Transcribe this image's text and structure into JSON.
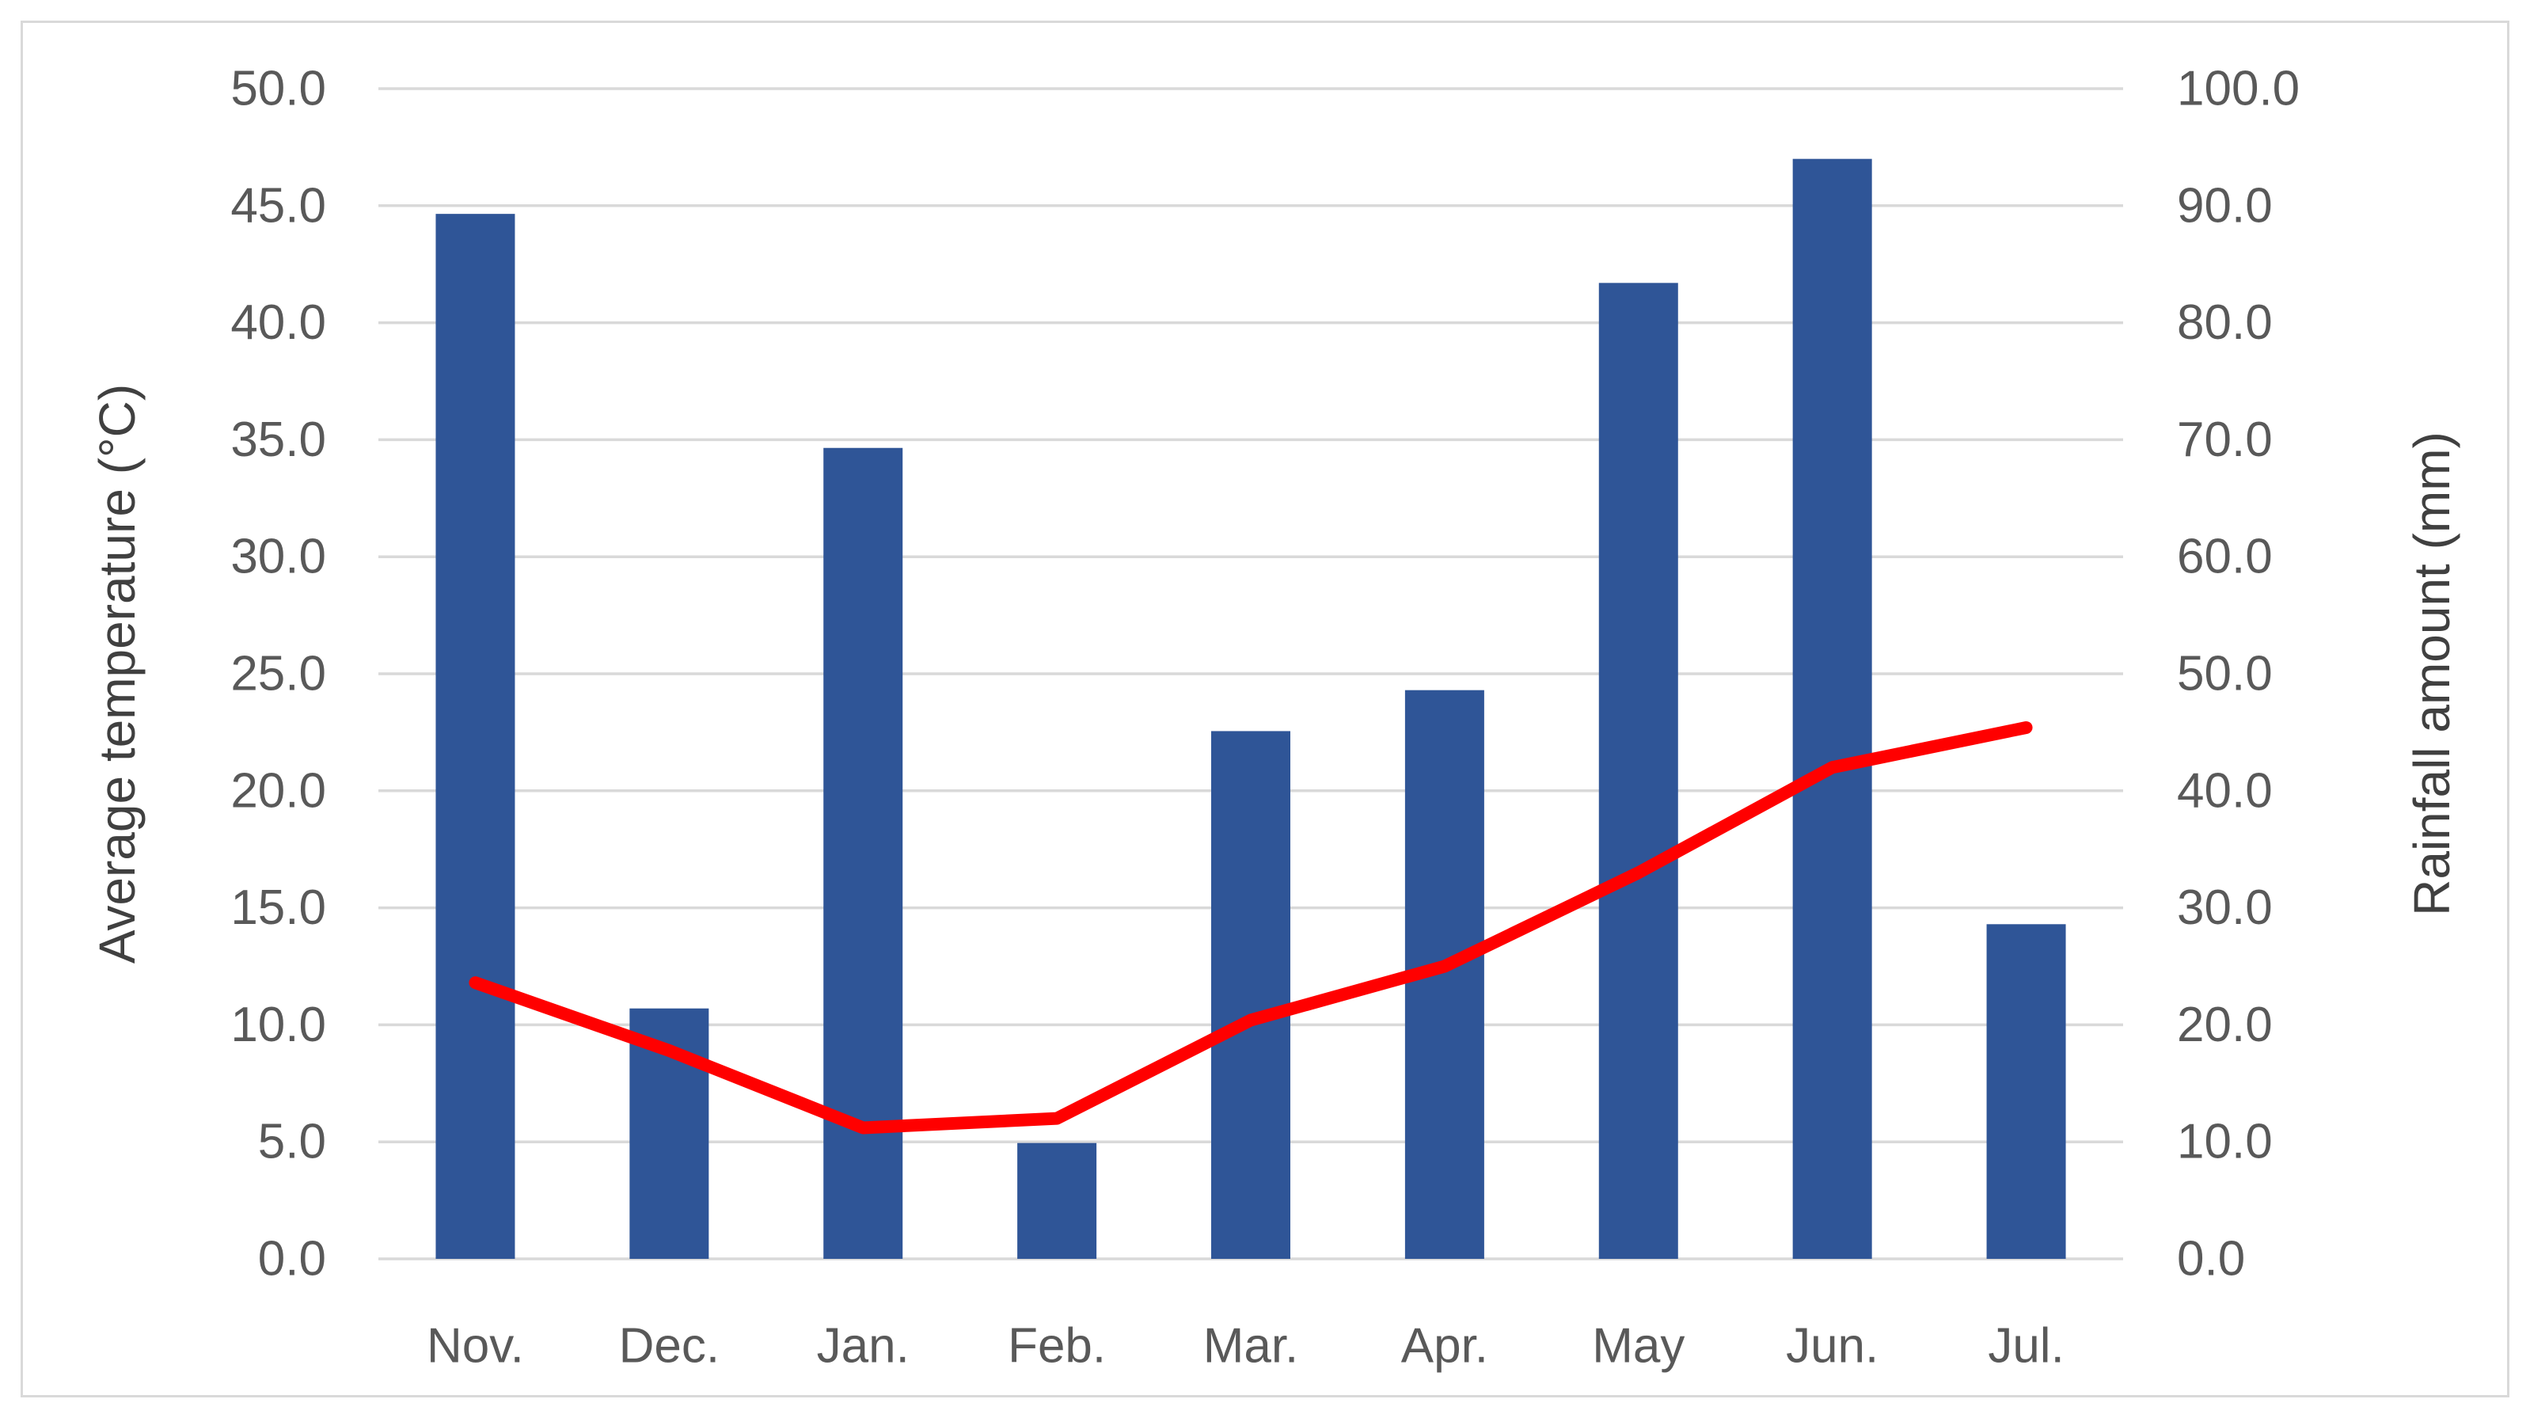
{
  "figure": {
    "background": "#ffffff",
    "border_color": "#d9d9d9"
  },
  "chart_data": {
    "type": "combo-bar-line",
    "categories": [
      "Nov.",
      "Dec.",
      "Jan.",
      "Feb.",
      "Mar.",
      "Apr.",
      "May",
      "Jun.",
      "Jul."
    ],
    "series": [
      {
        "name": "Rainfall amount (mm)",
        "type": "bar",
        "axis": "right",
        "color": "#2f5597",
        "values": [
          89.3,
          21.4,
          69.3,
          9.9,
          45.1,
          48.6,
          83.4,
          94.0,
          28.6
        ]
      },
      {
        "name": "Average temperature (°C)",
        "type": "line",
        "axis": "left",
        "color": "#ff0000",
        "values": [
          11.8,
          8.9,
          5.6,
          6.0,
          10.2,
          12.5,
          16.5,
          21.0,
          22.7
        ]
      }
    ],
    "left_axis": {
      "title": "Average temperature (°C)",
      "min": 0,
      "max": 50,
      "step": 5,
      "tick_labels": [
        "0.0",
        "5.0",
        "10.0",
        "15.0",
        "20.0",
        "25.0",
        "30.0",
        "35.0",
        "40.0",
        "45.0",
        "50.0"
      ]
    },
    "right_axis": {
      "title": "Rainfall amount (mm)",
      "min": 0,
      "max": 100,
      "step": 10,
      "tick_labels": [
        "0.0",
        "10.0",
        "20.0",
        "30.0",
        "40.0",
        "50.0",
        "60.0",
        "70.0",
        "80.0",
        "90.0",
        "100.0"
      ]
    },
    "grid": true,
    "legend": "none",
    "gridline_color": "#d9d9d9",
    "text_color": "#595959"
  }
}
